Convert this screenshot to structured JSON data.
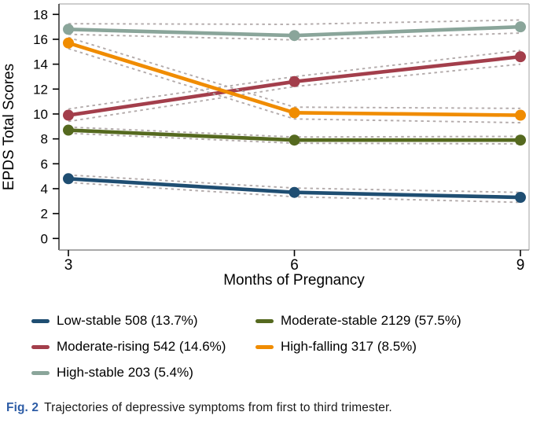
{
  "chart_data": {
    "type": "line",
    "x": [
      3,
      6,
      9
    ],
    "x_tick_labels": [
      "3",
      "6",
      "9"
    ],
    "y_tick_values": [
      0,
      2,
      4,
      6,
      8,
      10,
      12,
      14,
      16,
      18
    ],
    "xlabel": "Months of Pregnancy",
    "ylabel": "EPDS Total Scores",
    "ylim": [
      -0.9,
      18.8
    ],
    "grid": false,
    "legend_position": "below",
    "ci_style": "dashed",
    "series": [
      {
        "key": "low-stable",
        "name": "Low-stable 508 (13.7%)",
        "color": "#1f4e72",
        "values": [
          4.8,
          3.7,
          3.3
        ],
        "ci_upper": [
          5.1,
          4.05,
          3.7
        ],
        "ci_lower": [
          4.5,
          3.35,
          2.9
        ]
      },
      {
        "key": "moderate-stable",
        "name": "Moderate-stable 2129 (57.5%)",
        "color": "#55691f",
        "values": [
          8.7,
          7.9,
          7.9
        ],
        "ci_upper": [
          8.95,
          8.15,
          8.2
        ],
        "ci_lower": [
          8.45,
          7.65,
          7.6
        ]
      },
      {
        "key": "moderate-rising",
        "name": "Moderate-rising 542 (14.6%)",
        "color": "#a33e4b",
        "values": [
          9.9,
          12.6,
          14.6
        ],
        "ci_upper": [
          10.4,
          13.0,
          15.1
        ],
        "ci_lower": [
          9.4,
          12.2,
          14.0
        ]
      },
      {
        "key": "high-falling",
        "name": "High-falling 317 (8.5%)",
        "color": "#f08c00",
        "values": [
          15.7,
          10.1,
          9.9
        ],
        "ci_upper": [
          16.15,
          10.55,
          10.45
        ],
        "ci_lower": [
          15.25,
          9.6,
          9.3
        ]
      },
      {
        "key": "high-stable",
        "name": "High-stable 203 (5.4%)",
        "color": "#8aa59a",
        "values": [
          16.8,
          16.3,
          17.0
        ],
        "ci_upper": [
          17.25,
          17.2,
          17.55
        ],
        "ci_lower": [
          16.4,
          15.95,
          16.5
        ]
      }
    ]
  },
  "colors": {
    "ci_dash": "#b3abab",
    "axis_left": "#3a3a3a",
    "axis_bottom": "#8c8c8c",
    "frame": "#b0b0b0",
    "tick": "#000000",
    "caption_label": "#2e5da6"
  },
  "caption": {
    "label": "Fig. 2",
    "text": "Trajectories of depressive symptoms from first to third trimester."
  }
}
